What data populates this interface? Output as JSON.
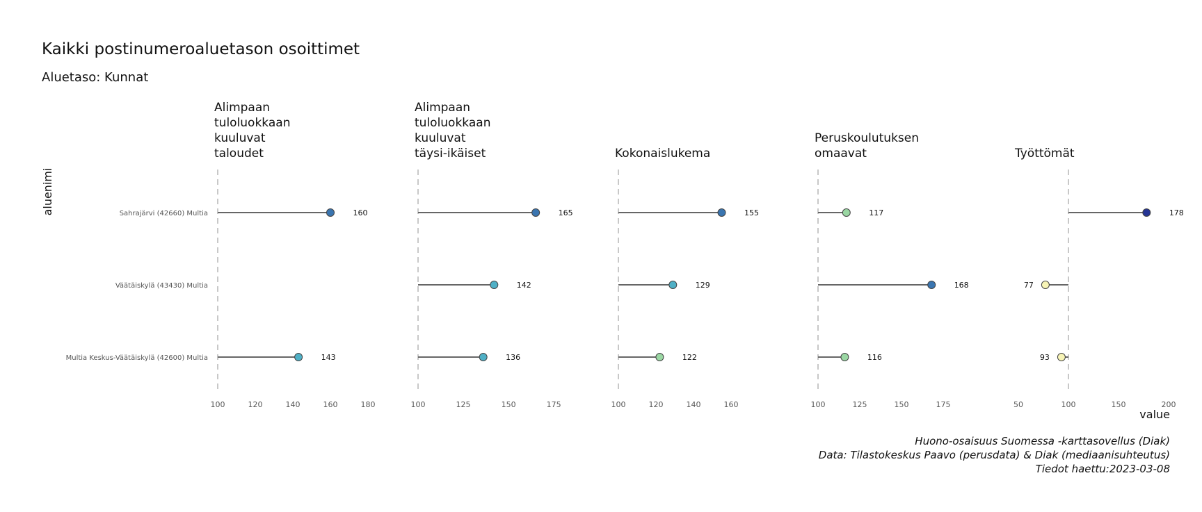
{
  "title": "Kaikki postinumeroaluetason osoittimet",
  "subtitle": "Aluetaso: Kunnat",
  "caption": [
    "Huono-osaisuus Suomessa -karttasovellus (Diak)",
    "Data: Tilastokeskus Paavo (perusdata) & Diak (mediaanisuhteutus)",
    "Tiedot haettu:2023-03-08"
  ],
  "chart_data": {
    "type": "scatter",
    "style": "lollipop, faceted; segments from 100 to value",
    "xlabel": "value",
    "ylabel": "aluenimi",
    "baseline": 100,
    "grid": false,
    "categories": [
      "Sahrajärvi (42660) Multia",
      "Väätäiskylä (43430) Multia",
      "Multia Keskus-Väätäiskylä (42600) Multia"
    ],
    "colors": {
      "low": "#f7f4b6",
      "mid": "#9ad7a3",
      "high": "#4fb0c6",
      "top": "#3a75b0",
      "max": "#253494"
    },
    "facets": [
      {
        "title": [
          "Alimpaan",
          "tuloluokkaan",
          "kuuluvat",
          "taloudet"
        ],
        "xlim": [
          100,
          180
        ],
        "ticks": [
          100,
          120,
          140,
          160,
          180
        ],
        "values": [
          160,
          null,
          143
        ],
        "colors": [
          "#3a75b0",
          null,
          "#4fb0c6"
        ]
      },
      {
        "title": [
          "Alimpaan",
          "tuloluokkaan",
          "kuuluvat",
          "täysi-ikäiset"
        ],
        "xlim": [
          100,
          183
        ],
        "ticks": [
          100,
          125,
          150,
          175
        ],
        "values": [
          165,
          142,
          136
        ],
        "colors": [
          "#3a75b0",
          "#4fb0c6",
          "#4fb0c6"
        ]
      },
      {
        "title": [
          "Kokonaislukema"
        ],
        "xlim": [
          100,
          180
        ],
        "ticks": [
          100,
          120,
          140,
          160
        ],
        "values": [
          155,
          129,
          122
        ],
        "colors": [
          "#3a75b0",
          "#4fb0c6",
          "#9ad7a3"
        ]
      },
      {
        "title": [
          "Peruskoulutuksen",
          "omaavat"
        ],
        "xlim": [
          100,
          190
        ],
        "ticks": [
          100,
          125,
          150,
          175
        ],
        "values": [
          117,
          168,
          116
        ],
        "colors": [
          "#9ad7a3",
          "#3a75b0",
          "#9ad7a3"
        ]
      },
      {
        "title": [
          "Työttömät"
        ],
        "xlim": [
          50,
          200
        ],
        "ticks": [
          50,
          100,
          150,
          200
        ],
        "values": [
          178,
          77,
          93
        ],
        "colors": [
          "#253494",
          "#f7f4b6",
          "#f7f4b6"
        ]
      }
    ]
  }
}
